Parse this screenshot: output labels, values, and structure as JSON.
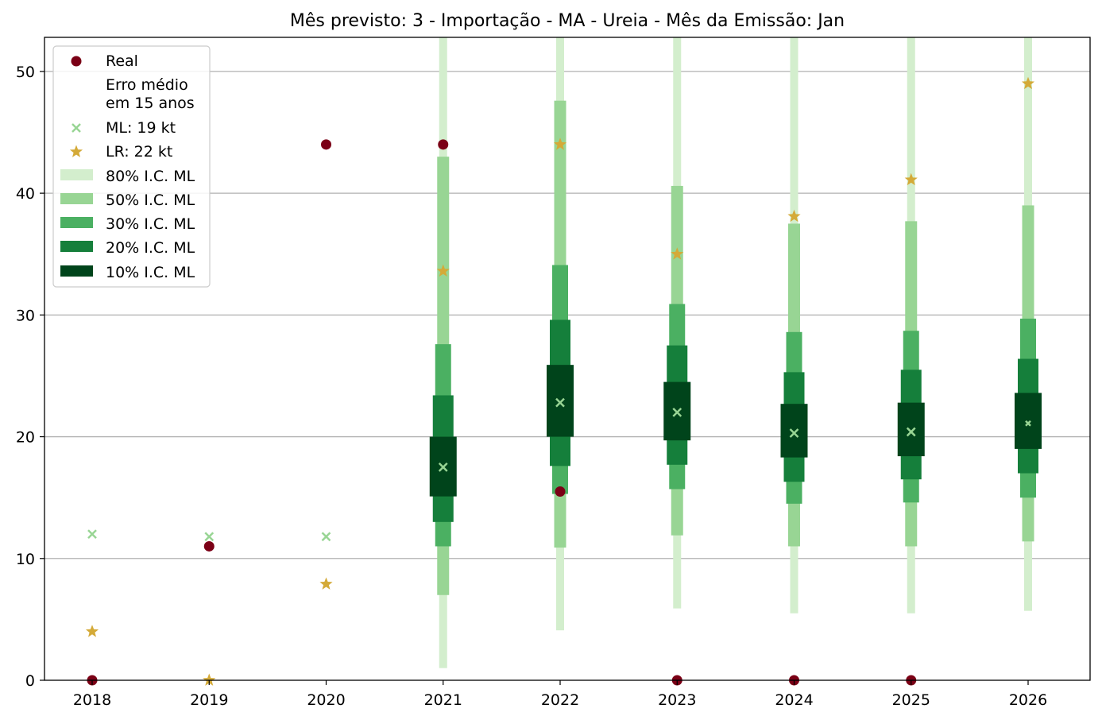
{
  "chart_data": {
    "type": "interval-forecast",
    "title": "Mês previsto: 3 - Importação - MA - Ureia - Mês da Emissão: Jan",
    "xlabel": "",
    "ylabel": "",
    "categories": [
      "2018",
      "2019",
      "2020",
      "2021",
      "2022",
      "2023",
      "2024",
      "2025",
      "2026"
    ],
    "ylim": [
      0,
      52.8
    ],
    "yticks": [
      0,
      10,
      20,
      30,
      40,
      50
    ],
    "grid": "y",
    "legend_position": "top-left",
    "colors": {
      "real": "#7b0016",
      "ml": "#98d594",
      "lr": "#d4aa38",
      "ci80": "#d3eecd",
      "ci50": "#98d594",
      "ci30": "#4bb062",
      "ci20": "#157f3b",
      "ci10": "#00441b",
      "grid": "#b0b0b0"
    },
    "legend": {
      "real": "Real",
      "note_line1": "Erro médio",
      "note_line2": "em 15 anos",
      "ml": "ML: 19 kt",
      "lr": "LR: 22 kt",
      "ci80": "80% I.C. ML",
      "ci50": "50% I.C. ML",
      "ci30": "30% I.C. ML",
      "ci20": "20% I.C. ML",
      "ci10": "10% I.C. ML"
    },
    "series": [
      {
        "name": "Real",
        "values": [
          0,
          11,
          44,
          44,
          15.5,
          0,
          0,
          0,
          null
        ]
      },
      {
        "name": "ML",
        "values": [
          12,
          11.8,
          11.8,
          17.5,
          22.8,
          22,
          20.3,
          20.4,
          21.1
        ]
      },
      {
        "name": "LR",
        "values": [
          4,
          0,
          7.9,
          33.6,
          44,
          35,
          38.1,
          41.1,
          49
        ]
      }
    ],
    "intervals": [
      {
        "year": "2021",
        "ci80": [
          1,
          53
        ],
        "ci50": [
          7,
          43
        ],
        "ci30": [
          11,
          27.6
        ],
        "ci20": [
          13,
          23.4
        ],
        "ci10": [
          15.1,
          20
        ]
      },
      {
        "year": "2022",
        "ci80": [
          4.1,
          53
        ],
        "ci50": [
          10.9,
          47.6
        ],
        "ci30": [
          15.3,
          34.1
        ],
        "ci20": [
          17.6,
          29.6
        ],
        "ci10": [
          20,
          25.9
        ]
      },
      {
        "year": "2023",
        "ci80": [
          5.9,
          53
        ],
        "ci50": [
          11.9,
          40.6
        ],
        "ci30": [
          15.7,
          30.9
        ],
        "ci20": [
          17.7,
          27.5
        ],
        "ci10": [
          19.7,
          24.5
        ]
      },
      {
        "year": "2024",
        "ci80": [
          5.5,
          53
        ],
        "ci50": [
          11,
          37.5
        ],
        "ci30": [
          14.5,
          28.6
        ],
        "ci20": [
          16.3,
          25.3
        ],
        "ci10": [
          18.3,
          22.7
        ]
      },
      {
        "year": "2025",
        "ci80": [
          5.5,
          53
        ],
        "ci50": [
          11,
          37.7
        ],
        "ci30": [
          14.6,
          28.7
        ],
        "ci20": [
          16.5,
          25.5
        ],
        "ci10": [
          18.4,
          22.8
        ]
      },
      {
        "year": "2026",
        "ci80": [
          5.7,
          53
        ],
        "ci50": [
          11.4,
          39
        ],
        "ci30": [
          15,
          29.7
        ],
        "ci20": [
          17,
          26.4
        ],
        "ci10": [
          19,
          23.6
        ]
      }
    ]
  }
}
